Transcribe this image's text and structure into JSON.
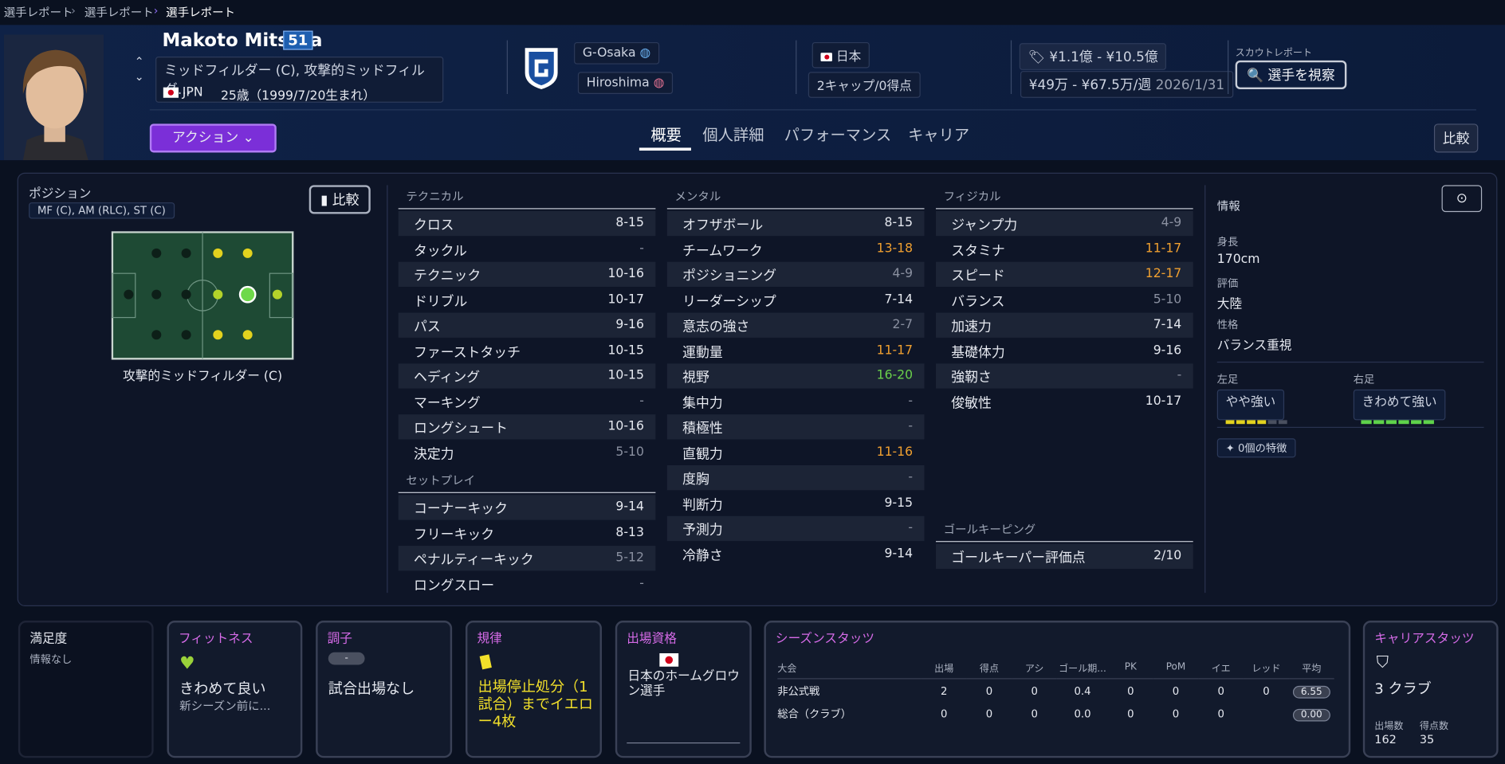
{
  "breadcrumb": [
    "選手レポート",
    "選手レポート",
    "選手レポート"
  ],
  "player": {
    "name": "Makoto Mitsuta",
    "number": 51,
    "role": "ミッドフィルダー (C), 攻撃的ミッドフィルダ…",
    "nationality": "JPN",
    "age": "25歳（1999/7/20生まれ）",
    "action": "アクション"
  },
  "clubs": [
    "G-Osaka",
    "Hiroshima"
  ],
  "nation": {
    "name": "日本",
    "caps": "2キャップ/0得点"
  },
  "contract": {
    "value": "¥1.1億 - ¥10.5億",
    "wage": "¥49万 - ¥67.5万/週",
    "expiry": "2026/1/31"
  },
  "scout": {
    "label": "スカウトレポート",
    "button": "選手を視察"
  },
  "tabs": [
    "概要",
    "個人詳細",
    "パフォーマンス",
    "キャリア"
  ],
  "compare_top": "比較",
  "position": {
    "title": "ポジション",
    "summary": "MF (C), AM (RLC), ST (C)",
    "compare": "比較",
    "role": "攻撃的ミッドフィルダー (C)"
  },
  "attribute_groups": [
    {
      "title": "テクニカル",
      "items": [
        {
          "name": "クロス",
          "value": "8-15",
          "color": "#e6e9f0"
        },
        {
          "name": "タックル",
          "value": "-",
          "color": "#8a90a0"
        },
        {
          "name": "テクニック",
          "value": "10-16",
          "color": "#e6e9f0"
        },
        {
          "name": "ドリブル",
          "value": "10-17",
          "color": "#e6e9f0"
        },
        {
          "name": "パス",
          "value": "9-16",
          "color": "#e6e9f0"
        },
        {
          "name": "ファーストタッチ",
          "value": "10-15",
          "color": "#e6e9f0"
        },
        {
          "name": "ヘディング",
          "value": "10-15",
          "color": "#e6e9f0"
        },
        {
          "name": "マーキング",
          "value": "-",
          "color": "#8a90a0"
        },
        {
          "name": "ロングシュート",
          "value": "10-16",
          "color": "#e6e9f0"
        },
        {
          "name": "決定力",
          "value": "5-10",
          "color": "#8a90a0"
        }
      ]
    },
    {
      "title": "セットプレイ",
      "items": [
        {
          "name": "コーナーキック",
          "value": "9-14",
          "color": "#e6e9f0"
        },
        {
          "name": "フリーキック",
          "value": "8-13",
          "color": "#e6e9f0"
        },
        {
          "name": "ペナルティーキック",
          "value": "5-12",
          "color": "#8a90a0"
        },
        {
          "name": "ロングスロー",
          "value": "-",
          "color": "#8a90a0"
        }
      ]
    },
    {
      "title": "メンタル",
      "items": [
        {
          "name": "オフザボール",
          "value": "8-15",
          "color": "#e6e9f0"
        },
        {
          "name": "チームワーク",
          "value": "13-18",
          "color": "#f0a030"
        },
        {
          "name": "ポジショニング",
          "value": "4-9",
          "color": "#8a90a0"
        },
        {
          "name": "リーダーシップ",
          "value": "7-14",
          "color": "#e6e9f0"
        },
        {
          "name": "意志の強さ",
          "value": "2-7",
          "color": "#8a90a0"
        },
        {
          "name": "運動量",
          "value": "11-17",
          "color": "#f0a030"
        },
        {
          "name": "視野",
          "value": "16-20",
          "color": "#6ad04a"
        },
        {
          "name": "集中力",
          "value": "-",
          "color": "#8a90a0"
        },
        {
          "name": "積極性",
          "value": "-",
          "color": "#8a90a0"
        },
        {
          "name": "直観力",
          "value": "11-16",
          "color": "#f0a030"
        },
        {
          "name": "度胸",
          "value": "-",
          "color": "#8a90a0"
        },
        {
          "name": "判断力",
          "value": "9-15",
          "color": "#e6e9f0"
        },
        {
          "name": "予測力",
          "value": "-",
          "color": "#8a90a0"
        },
        {
          "name": "冷静さ",
          "value": "9-14",
          "color": "#e6e9f0"
        }
      ]
    },
    {
      "title": "フィジカル",
      "items": [
        {
          "name": "ジャンプ力",
          "value": "4-9",
          "color": "#8a90a0"
        },
        {
          "name": "スタミナ",
          "value": "11-17",
          "color": "#f0a030"
        },
        {
          "name": "スピード",
          "value": "12-17",
          "color": "#f0a030"
        },
        {
          "name": "バランス",
          "value": "5-10",
          "color": "#8a90a0"
        },
        {
          "name": "加速力",
          "value": "7-14",
          "color": "#e6e9f0"
        },
        {
          "name": "基礎体力",
          "value": "9-16",
          "color": "#e6e9f0"
        },
        {
          "name": "強靭さ",
          "value": "-",
          "color": "#8a90a0"
        },
        {
          "name": "俊敏性",
          "value": "10-17",
          "color": "#e6e9f0"
        }
      ]
    },
    {
      "title": "ゴールキーピング",
      "items": [
        {
          "name": "ゴールキーパー評価点",
          "value": "2/10",
          "color": "#e6e9f0"
        }
      ]
    }
  ],
  "info": {
    "title": "情報",
    "fields": [
      {
        "label": "身長",
        "value": "170cm"
      },
      {
        "label": "評価",
        "value": "大陸"
      },
      {
        "label": "性格",
        "value": "バランス重視"
      }
    ],
    "left_foot": {
      "label": "左足",
      "value": "やや強い"
    },
    "right_foot": {
      "label": "右足",
      "value": "きわめて強い"
    },
    "traits": "0個の特徴"
  },
  "cards": {
    "satisfaction": {
      "title": "満足度",
      "text": "情報なし"
    },
    "fitness": {
      "title": "フィットネス",
      "status": "きわめて良い",
      "note": "新シーズン前に..."
    },
    "form": {
      "title": "調子",
      "badge": "-",
      "status": "試合出場なし"
    },
    "discipline": {
      "title": "規律",
      "status": "出場停止処分（1試合）までイエロー4枚"
    },
    "eligibility": {
      "title": "出場資格",
      "status": "日本のホームグロウン選手"
    },
    "season": {
      "title": "シーズンスタッツ",
      "columns": [
        "大会",
        "出場",
        "得点",
        "アシ",
        "ゴール期...",
        "PK",
        "PoM",
        "イエ",
        "レッド",
        "平均"
      ],
      "rows": [
        [
          "非公式戦",
          "2",
          "0",
          "0",
          "0.4",
          "0",
          "0",
          "0",
          "0",
          "6.55"
        ],
        [
          "総合（クラブ）",
          "0",
          "0",
          "0",
          "0.0",
          "0",
          "0",
          "0",
          null,
          "0.00"
        ]
      ]
    },
    "career": {
      "title": "キャリアスタッツ",
      "clubs": "3 クラブ",
      "stats": [
        {
          "label": "出場数",
          "value": "162"
        },
        {
          "label": "得点数",
          "value": "35"
        }
      ]
    }
  }
}
